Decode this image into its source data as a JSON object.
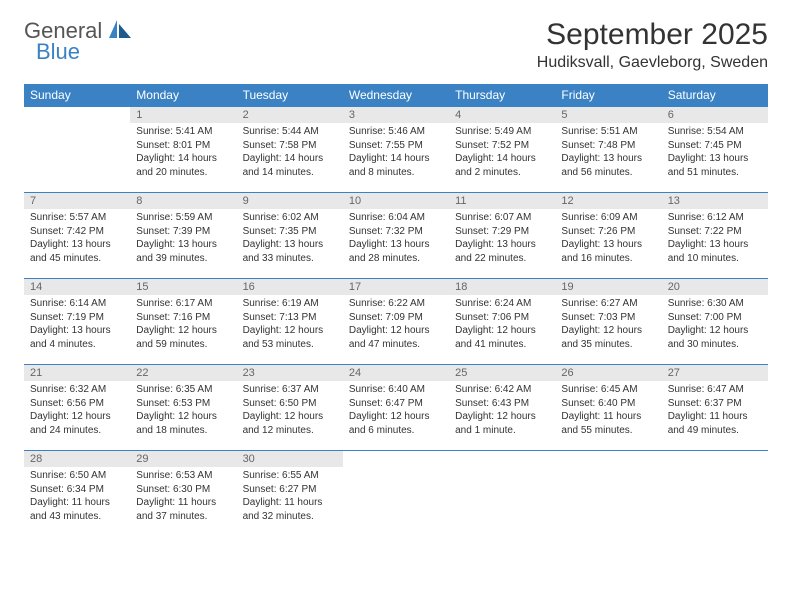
{
  "logo": {
    "general": "General",
    "blue": "Blue"
  },
  "title": "September 2025",
  "location": "Hudiksvall, Gaevleborg, Sweden",
  "colors": {
    "header_bg": "#3b82c4",
    "header_text": "#ffffff",
    "daynum_bg": "#e8e8e8",
    "daynum_text": "#666666",
    "body_text": "#333333",
    "rule": "#3b82c4",
    "page_bg": "#ffffff"
  },
  "typography": {
    "title_fontsize": 30,
    "location_fontsize": 16,
    "header_fontsize": 12,
    "cell_fontsize": 10
  },
  "weekdays": [
    "Sunday",
    "Monday",
    "Tuesday",
    "Wednesday",
    "Thursday",
    "Friday",
    "Saturday"
  ],
  "weeks": [
    [
      null,
      {
        "n": "1",
        "sr": "Sunrise: 5:41 AM",
        "ss": "Sunset: 8:01 PM",
        "dl1": "Daylight: 14 hours",
        "dl2": "and 20 minutes."
      },
      {
        "n": "2",
        "sr": "Sunrise: 5:44 AM",
        "ss": "Sunset: 7:58 PM",
        "dl1": "Daylight: 14 hours",
        "dl2": "and 14 minutes."
      },
      {
        "n": "3",
        "sr": "Sunrise: 5:46 AM",
        "ss": "Sunset: 7:55 PM",
        "dl1": "Daylight: 14 hours",
        "dl2": "and 8 minutes."
      },
      {
        "n": "4",
        "sr": "Sunrise: 5:49 AM",
        "ss": "Sunset: 7:52 PM",
        "dl1": "Daylight: 14 hours",
        "dl2": "and 2 minutes."
      },
      {
        "n": "5",
        "sr": "Sunrise: 5:51 AM",
        "ss": "Sunset: 7:48 PM",
        "dl1": "Daylight: 13 hours",
        "dl2": "and 56 minutes."
      },
      {
        "n": "6",
        "sr": "Sunrise: 5:54 AM",
        "ss": "Sunset: 7:45 PM",
        "dl1": "Daylight: 13 hours",
        "dl2": "and 51 minutes."
      }
    ],
    [
      {
        "n": "7",
        "sr": "Sunrise: 5:57 AM",
        "ss": "Sunset: 7:42 PM",
        "dl1": "Daylight: 13 hours",
        "dl2": "and 45 minutes."
      },
      {
        "n": "8",
        "sr": "Sunrise: 5:59 AM",
        "ss": "Sunset: 7:39 PM",
        "dl1": "Daylight: 13 hours",
        "dl2": "and 39 minutes."
      },
      {
        "n": "9",
        "sr": "Sunrise: 6:02 AM",
        "ss": "Sunset: 7:35 PM",
        "dl1": "Daylight: 13 hours",
        "dl2": "and 33 minutes."
      },
      {
        "n": "10",
        "sr": "Sunrise: 6:04 AM",
        "ss": "Sunset: 7:32 PM",
        "dl1": "Daylight: 13 hours",
        "dl2": "and 28 minutes."
      },
      {
        "n": "11",
        "sr": "Sunrise: 6:07 AM",
        "ss": "Sunset: 7:29 PM",
        "dl1": "Daylight: 13 hours",
        "dl2": "and 22 minutes."
      },
      {
        "n": "12",
        "sr": "Sunrise: 6:09 AM",
        "ss": "Sunset: 7:26 PM",
        "dl1": "Daylight: 13 hours",
        "dl2": "and 16 minutes."
      },
      {
        "n": "13",
        "sr": "Sunrise: 6:12 AM",
        "ss": "Sunset: 7:22 PM",
        "dl1": "Daylight: 13 hours",
        "dl2": "and 10 minutes."
      }
    ],
    [
      {
        "n": "14",
        "sr": "Sunrise: 6:14 AM",
        "ss": "Sunset: 7:19 PM",
        "dl1": "Daylight: 13 hours",
        "dl2": "and 4 minutes."
      },
      {
        "n": "15",
        "sr": "Sunrise: 6:17 AM",
        "ss": "Sunset: 7:16 PM",
        "dl1": "Daylight: 12 hours",
        "dl2": "and 59 minutes."
      },
      {
        "n": "16",
        "sr": "Sunrise: 6:19 AM",
        "ss": "Sunset: 7:13 PM",
        "dl1": "Daylight: 12 hours",
        "dl2": "and 53 minutes."
      },
      {
        "n": "17",
        "sr": "Sunrise: 6:22 AM",
        "ss": "Sunset: 7:09 PM",
        "dl1": "Daylight: 12 hours",
        "dl2": "and 47 minutes."
      },
      {
        "n": "18",
        "sr": "Sunrise: 6:24 AM",
        "ss": "Sunset: 7:06 PM",
        "dl1": "Daylight: 12 hours",
        "dl2": "and 41 minutes."
      },
      {
        "n": "19",
        "sr": "Sunrise: 6:27 AM",
        "ss": "Sunset: 7:03 PM",
        "dl1": "Daylight: 12 hours",
        "dl2": "and 35 minutes."
      },
      {
        "n": "20",
        "sr": "Sunrise: 6:30 AM",
        "ss": "Sunset: 7:00 PM",
        "dl1": "Daylight: 12 hours",
        "dl2": "and 30 minutes."
      }
    ],
    [
      {
        "n": "21",
        "sr": "Sunrise: 6:32 AM",
        "ss": "Sunset: 6:56 PM",
        "dl1": "Daylight: 12 hours",
        "dl2": "and 24 minutes."
      },
      {
        "n": "22",
        "sr": "Sunrise: 6:35 AM",
        "ss": "Sunset: 6:53 PM",
        "dl1": "Daylight: 12 hours",
        "dl2": "and 18 minutes."
      },
      {
        "n": "23",
        "sr": "Sunrise: 6:37 AM",
        "ss": "Sunset: 6:50 PM",
        "dl1": "Daylight: 12 hours",
        "dl2": "and 12 minutes."
      },
      {
        "n": "24",
        "sr": "Sunrise: 6:40 AM",
        "ss": "Sunset: 6:47 PM",
        "dl1": "Daylight: 12 hours",
        "dl2": "and 6 minutes."
      },
      {
        "n": "25",
        "sr": "Sunrise: 6:42 AM",
        "ss": "Sunset: 6:43 PM",
        "dl1": "Daylight: 12 hours",
        "dl2": "and 1 minute."
      },
      {
        "n": "26",
        "sr": "Sunrise: 6:45 AM",
        "ss": "Sunset: 6:40 PM",
        "dl1": "Daylight: 11 hours",
        "dl2": "and 55 minutes."
      },
      {
        "n": "27",
        "sr": "Sunrise: 6:47 AM",
        "ss": "Sunset: 6:37 PM",
        "dl1": "Daylight: 11 hours",
        "dl2": "and 49 minutes."
      }
    ],
    [
      {
        "n": "28",
        "sr": "Sunrise: 6:50 AM",
        "ss": "Sunset: 6:34 PM",
        "dl1": "Daylight: 11 hours",
        "dl2": "and 43 minutes."
      },
      {
        "n": "29",
        "sr": "Sunrise: 6:53 AM",
        "ss": "Sunset: 6:30 PM",
        "dl1": "Daylight: 11 hours",
        "dl2": "and 37 minutes."
      },
      {
        "n": "30",
        "sr": "Sunrise: 6:55 AM",
        "ss": "Sunset: 6:27 PM",
        "dl1": "Daylight: 11 hours",
        "dl2": "and 32 minutes."
      },
      null,
      null,
      null,
      null
    ]
  ]
}
